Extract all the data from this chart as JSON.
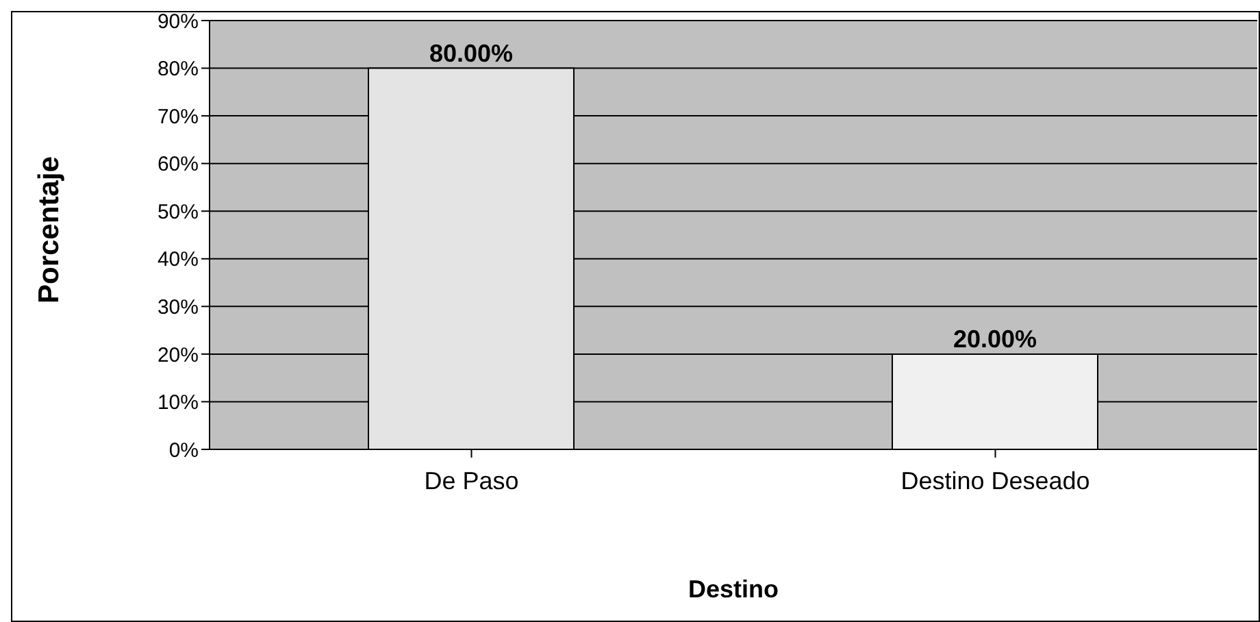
{
  "chart_data": {
    "type": "bar",
    "xlabel": "Destino",
    "ylabel": "Porcentaje",
    "categories": [
      "De Paso",
      "Destino Deseado"
    ],
    "values": [
      80,
      20
    ],
    "colors": [
      "#e4e4e4",
      "#f0f0f0"
    ],
    "value_labels": [
      "80.00%",
      "20.00%"
    ],
    "ylim": [
      0,
      90
    ],
    "yticks": [
      {
        "value": 0,
        "label": "0%"
      },
      {
        "value": 10,
        "label": "10%"
      },
      {
        "value": 20,
        "label": "20%"
      },
      {
        "value": 30,
        "label": "30%"
      },
      {
        "value": 40,
        "label": "40%"
      },
      {
        "value": 50,
        "label": "50%"
      },
      {
        "value": 60,
        "label": "60%"
      },
      {
        "value": 70,
        "label": "70%"
      },
      {
        "value": 80,
        "label": "80%"
      },
      {
        "value": 90,
        "label": "90%"
      }
    ],
    "grid": "y",
    "legend": false
  }
}
